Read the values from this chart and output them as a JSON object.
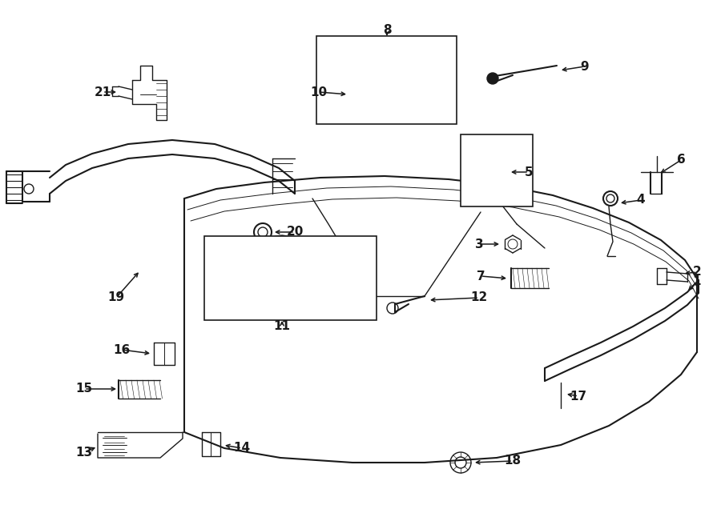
{
  "bg": "#ffffff",
  "lc": "#1a1a1a",
  "fig_w": 9.0,
  "fig_h": 6.61,
  "dpi": 100
}
